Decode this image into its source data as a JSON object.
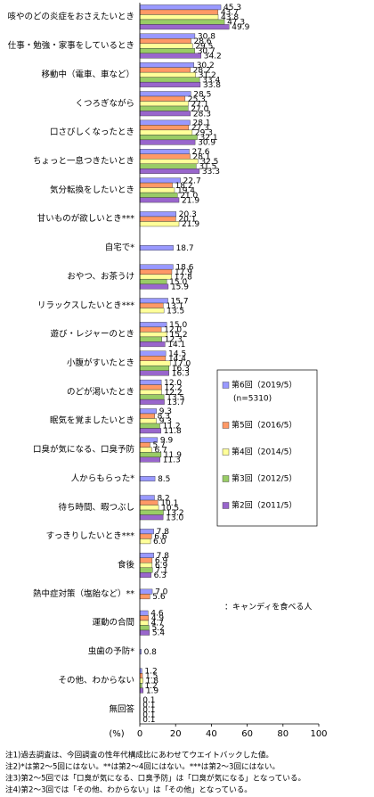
{
  "chart_data": {
    "type": "hbar",
    "categories": [
      "咳やのどの炎症をおさえたいとき",
      "仕事・勉強・家事をしているとき",
      "移動中（電車、車など）",
      "くつろぎながら",
      "口さびしくなったとき",
      "ちょっと一息つきたいとき",
      "気分転換をしたいとき",
      "甘いものが欲しいとき***",
      "自宅で*",
      "おやつ、お茶うけ",
      "リラックスしたいとき***",
      "遊び・レジャーのとき",
      "小腹がすいたとき",
      "のどが渇いたとき",
      "眠気を覚ましたいとき",
      "口臭が気になる、口臭予防",
      "人からもらった*",
      "待ち時間、暇つぶし",
      "すっきりしたいとき***",
      "食後",
      "熱中症対策（塩飴など）**",
      "運動の合間",
      "虫歯の予防*",
      "その他、わからない",
      "無回答"
    ],
    "series": [
      {
        "name": "第6回（2019/5）",
        "color": "#9999ff",
        "values": [
          45.3,
          30.8,
          30.2,
          28.5,
          28.1,
          27.6,
          22.7,
          20.3,
          18.7,
          18.6,
          15.7,
          15.0,
          14.5,
          12.0,
          9.3,
          9.9,
          8.5,
          8.2,
          7.8,
          7.8,
          7.0,
          4.6,
          0.8,
          1.2,
          0.1
        ],
        "value_labels": [
          "45.3",
          "30.8",
          "30.2",
          "28.5",
          "28.1",
          "27.6",
          "22.7",
          "20.3",
          "18.7",
          "18.6",
          "15.7",
          "15.0",
          "14.5",
          "12.0",
          "9.3",
          "9.9",
          "8.5",
          "8.2",
          "7.8",
          "7.8",
          "7.0",
          "4.6",
          "0.8",
          "1.2",
          "0.1"
        ]
      },
      {
        "name": "第5回（2016/5）",
        "color": "#ff9966",
        "values": [
          43.7,
          28.6,
          28.2,
          25.3,
          27.3,
          28.1,
          18.2,
          20.1,
          null,
          17.9,
          13.1,
          12.0,
          14.4,
          12.2,
          8.3,
          5.7,
          null,
          10.1,
          6.6,
          6.9,
          5.6,
          4.9,
          null,
          1.5,
          0.1
        ],
        "value_labels": [
          "43.7",
          "28.6",
          "28.2",
          "25.3",
          "27.3",
          "28.1",
          "18.2",
          "20.1",
          null,
          "17.9",
          "13.1",
          "12.0",
          "14.4",
          "12.2",
          "8.3",
          "5.7",
          null,
          "10.1",
          "6.6",
          "6.9",
          "5.6",
          "4.9",
          null,
          "1.5",
          "0.1"
        ]
      },
      {
        "name": "第4回（2014/5）",
        "color": "#ffff99",
        "values": [
          43.8,
          29.5,
          31.2,
          27.1,
          29.3,
          32.5,
          19.4,
          21.9,
          null,
          17.8,
          13.5,
          15.2,
          17.0,
          12.2,
          9.3,
          6.7,
          null,
          10.5,
          6.0,
          6.9,
          null,
          4.7,
          null,
          1.8,
          0.1
        ],
        "value_labels": [
          "43.8",
          "29.5",
          "31.2",
          "27.1",
          "29.3",
          "32.5",
          "19.4",
          "21.9",
          null,
          "17.8",
          "13.5",
          "15.2",
          "17.0",
          "12.2",
          "9.3",
          "6.7",
          null,
          "10.5",
          "6.0",
          "6.9",
          null,
          "4.7",
          null,
          "1.8",
          "0.1"
        ]
      },
      {
        "name": "第3回（2012/5）",
        "color": "#99cc66",
        "values": [
          47.3,
          30.7,
          33.4,
          27.0,
          32.1,
          31.5,
          21.0,
          null,
          null,
          15.0,
          null,
          12.3,
          16.3,
          13.5,
          11.2,
          11.9,
          null,
          13.2,
          null,
          7.1,
          null,
          5.2,
          null,
          1.2,
          0.1
        ],
        "value_labels": [
          "47.3",
          "30.7",
          "33.4",
          "27.0",
          "32.1",
          "31.5",
          "21.0",
          null,
          null,
          "15.0",
          null,
          "12.3",
          "16.3",
          "13.5",
          "11.2",
          "11.9",
          null,
          "13.2",
          null,
          "7.1",
          null,
          "5.2",
          null,
          "1.2",
          "0.1"
        ]
      },
      {
        "name": "第2回（2011/5）",
        "color": "#9966cc",
        "values": [
          49.9,
          34.2,
          33.8,
          28.3,
          30.9,
          33.3,
          21.9,
          null,
          null,
          15.9,
          null,
          14.1,
          16.3,
          13.7,
          11.8,
          11.3,
          null,
          13.0,
          null,
          6.3,
          null,
          5.4,
          null,
          1.9,
          0.1
        ],
        "value_labels": [
          "49.9",
          "34.2",
          "33.8",
          "28.3",
          "30.9",
          "33.3",
          "21.9",
          null,
          null,
          "15.9",
          null,
          "14.1",
          "16.3",
          "13.7",
          "11.8",
          "11.3",
          null,
          "13.0",
          null,
          "6.3",
          null,
          "5.4",
          null,
          "1.9",
          "0.1"
        ]
      }
    ],
    "legend_note": "(n=5310)",
    "annotation": "：キャンディを食べる人",
    "xlabel": "(%)",
    "xlim": [
      0,
      100
    ],
    "xticks": [
      0,
      20,
      40,
      60,
      80,
      100
    ],
    "notes": [
      "注1)過去調査は、今回調査の性年代構成比にあわせてウエイトバックした値。",
      "注2)*は第2～5回にはない。**は第2～4回にはない。***は第2～3回にはない。",
      "注3)第2～5回では「口臭が気になる、口臭予防」は「口臭が気になる」となっている。",
      "注4)第2～3回では「その他、わからない」は「その他」となっている。"
    ]
  }
}
